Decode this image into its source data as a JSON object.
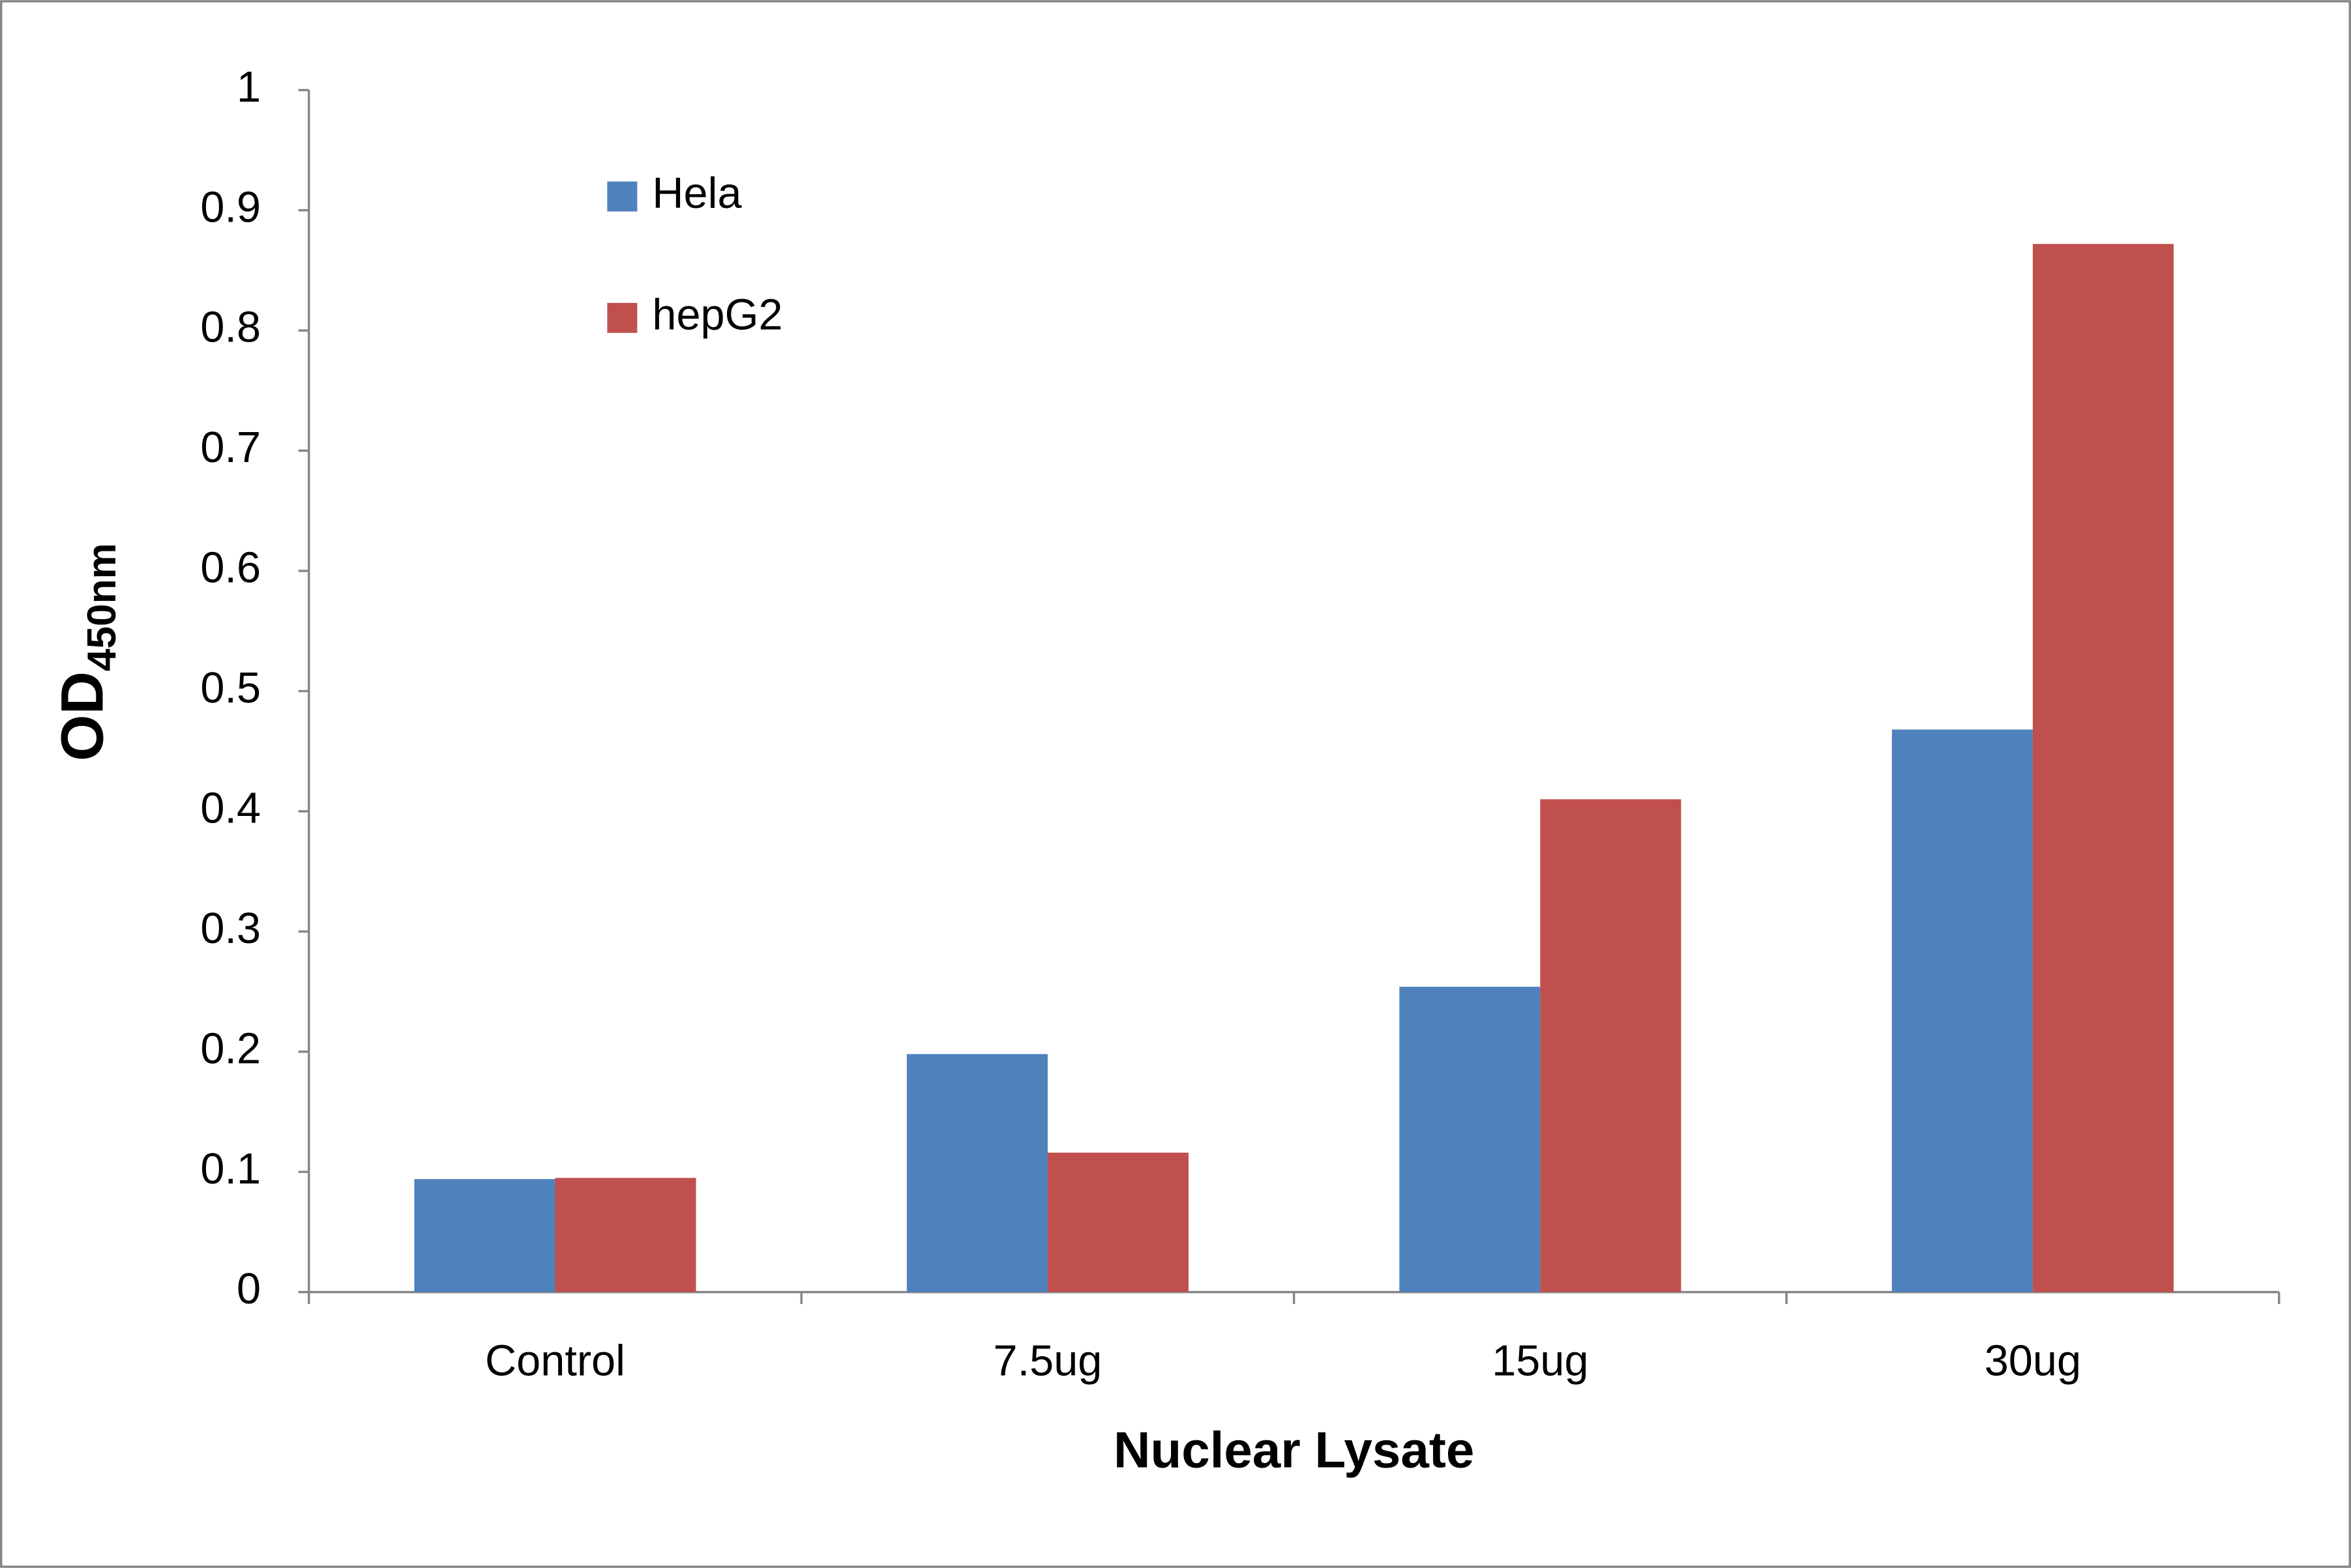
{
  "chart_data": {
    "type": "bar",
    "xlabel": "Nuclear Lysate",
    "ylabel": "OD",
    "ylabel_subscript": "450nm",
    "categories": [
      "Control",
      "7.5ug",
      "15ug",
      "30ug"
    ],
    "series": [
      {
        "name": "Hela",
        "color": "#4f81bd",
        "values": [
          0.094,
          0.198,
          0.254,
          0.468
        ]
      },
      {
        "name": "hepG2",
        "color": "#c0504d",
        "values": [
          0.095,
          0.116,
          0.41,
          0.872
        ]
      }
    ],
    "ylim": [
      0,
      1
    ],
    "yticks": [
      0,
      0.1,
      0.2,
      0.3,
      0.4,
      0.5,
      0.6,
      0.7,
      0.8,
      0.9,
      1
    ],
    "legend": "upper-left"
  }
}
